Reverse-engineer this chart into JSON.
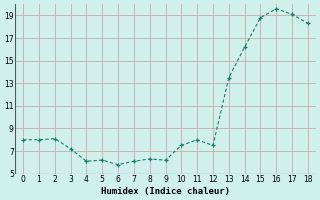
{
  "x": [
    0,
    1,
    2,
    3,
    4,
    5,
    6,
    7,
    8,
    9,
    10,
    11,
    12,
    13,
    14,
    15,
    16,
    17,
    18
  ],
  "y": [
    8.0,
    8.0,
    8.1,
    7.2,
    6.1,
    6.2,
    5.8,
    6.1,
    6.3,
    6.2,
    7.5,
    8.0,
    7.5,
    13.5,
    16.2,
    18.8,
    19.6,
    19.1,
    18.3
  ],
  "line_color": "#1a7a6a",
  "marker": "+",
  "background_color": "#cff0eb",
  "grid_color": "#c8aaaa",
  "xlabel": "Humidex (Indice chaleur)",
  "ylim": [
    5,
    20
  ],
  "xlim": [
    -0.5,
    18.5
  ],
  "yticks": [
    5,
    7,
    9,
    11,
    13,
    15,
    17,
    19
  ],
  "xticks": [
    0,
    1,
    2,
    3,
    4,
    5,
    6,
    7,
    8,
    9,
    10,
    11,
    12,
    13,
    14,
    15,
    16,
    17,
    18
  ]
}
